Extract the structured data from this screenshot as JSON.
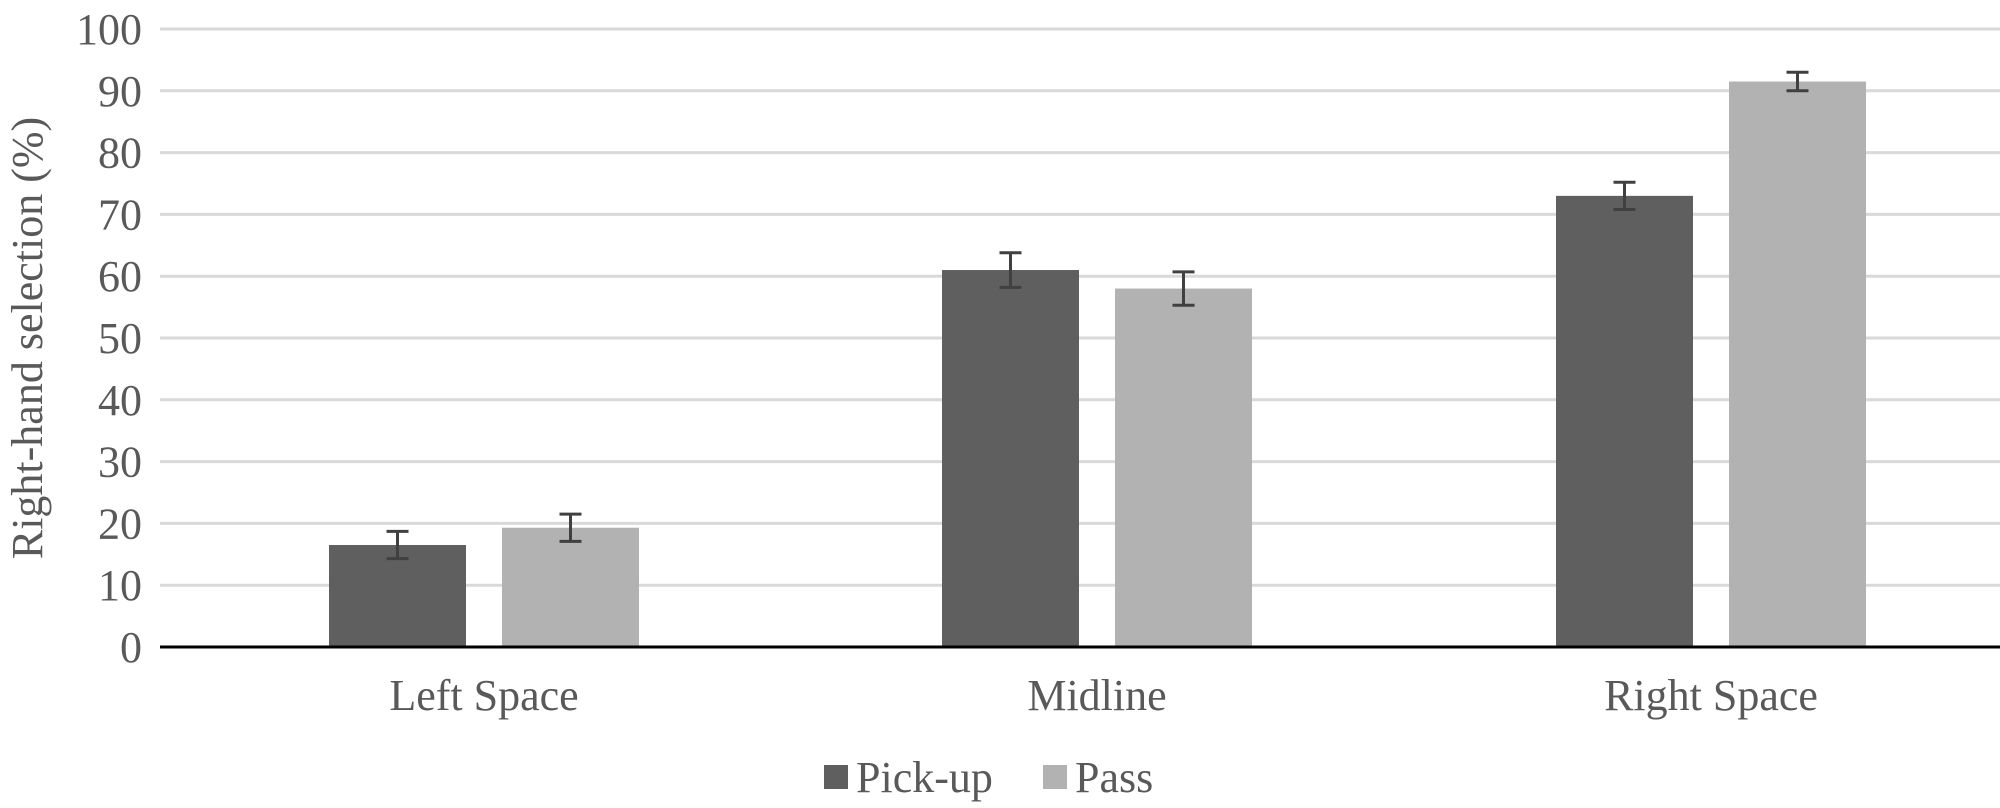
{
  "chart_data": {
    "type": "bar",
    "title": "",
    "xlabel": "",
    "ylabel": "Right-hand selection (%)",
    "categories": [
      "Left Space",
      "Midline",
      "Right Space"
    ],
    "ylim": [
      0,
      100
    ],
    "yticks": [
      0,
      10,
      20,
      30,
      40,
      50,
      60,
      70,
      80,
      90,
      100
    ],
    "grid": true,
    "legend_position": "bottom",
    "series": [
      {
        "name": "Pick-up",
        "color": "#5f5f5f",
        "values": [
          16.5,
          61,
          73
        ],
        "error": [
          2.2,
          2.8,
          2.2
        ]
      },
      {
        "name": "Pass",
        "color": "#b2b2b2",
        "values": [
          19.3,
          58,
          91.5
        ],
        "error": [
          2.2,
          2.7,
          1.5
        ]
      }
    ]
  }
}
